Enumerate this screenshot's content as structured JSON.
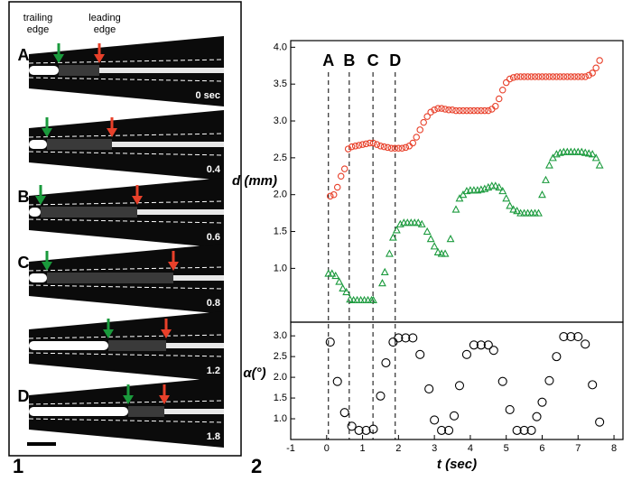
{
  "panel_1": {
    "header": [
      "trailing",
      "edge",
      "leading",
      "edge"
    ],
    "row_labels": [
      "A",
      "B",
      "C",
      "D"
    ],
    "times": [
      "0 sec",
      "0.4",
      "0.6",
      "0.8",
      "1.2",
      "1.8"
    ]
  },
  "panel_labels": [
    "1",
    "2"
  ],
  "chart_data": [
    {
      "type": "scatter",
      "ylabel": "d (mm)",
      "xlim": [
        -1,
        8.25
      ],
      "ylim": [
        0.27,
        4.09
      ],
      "yticks": [
        {
          "value": 1,
          "label": "1.0"
        },
        1.5,
        {
          "value": 2,
          "label": "2.0"
        },
        2.5,
        {
          "value": 3,
          "label": "3.0"
        },
        3.5,
        {
          "value": 4,
          "label": "4.0"
        }
      ],
      "annotations": [
        {
          "text": "A",
          "x": 0.05
        },
        {
          "text": "B",
          "x": 0.63
        },
        {
          "text": "C",
          "x": 1.29
        },
        {
          "text": "D",
          "x": 1.91
        }
      ],
      "series": [
        {
          "name": "leading edge",
          "color": "#e8402a",
          "marker": "circle",
          "x": [
            0.1,
            0.2,
            0.3,
            0.4,
            0.5,
            0.6,
            0.7,
            0.8,
            0.9,
            1.0,
            1.1,
            1.2,
            1.3,
            1.4,
            1.5,
            1.6,
            1.7,
            1.8,
            1.9,
            2.0,
            2.1,
            2.2,
            2.3,
            2.4,
            2.5,
            2.6,
            2.7,
            2.8,
            2.9,
            3.0,
            3.1,
            3.2,
            3.3,
            3.4,
            3.5,
            3.6,
            3.7,
            3.8,
            3.9,
            4.0,
            4.1,
            4.2,
            4.3,
            4.4,
            4.5,
            4.6,
            4.7,
            4.8,
            4.9,
            5.0,
            5.1,
            5.2,
            5.3,
            5.4,
            5.5,
            5.6,
            5.7,
            5.8,
            5.9,
            6.0,
            6.1,
            6.2,
            6.3,
            6.4,
            6.5,
            6.6,
            6.7,
            6.8,
            6.9,
            7.0,
            7.1,
            7.2,
            7.3,
            7.4,
            7.5,
            7.6
          ],
          "values": [
            1.98,
            2.0,
            2.1,
            2.25,
            2.35,
            2.62,
            2.65,
            2.66,
            2.67,
            2.68,
            2.69,
            2.7,
            2.7,
            2.68,
            2.66,
            2.65,
            2.64,
            2.63,
            2.63,
            2.63,
            2.63,
            2.64,
            2.66,
            2.7,
            2.78,
            2.88,
            2.98,
            3.06,
            3.12,
            3.15,
            3.17,
            3.17,
            3.16,
            3.15,
            3.15,
            3.14,
            3.14,
            3.14,
            3.14,
            3.14,
            3.14,
            3.14,
            3.14,
            3.14,
            3.14,
            3.16,
            3.2,
            3.3,
            3.42,
            3.52,
            3.57,
            3.59,
            3.6,
            3.6,
            3.6,
            3.6,
            3.6,
            3.6,
            3.6,
            3.6,
            3.6,
            3.6,
            3.6,
            3.6,
            3.6,
            3.6,
            3.6,
            3.6,
            3.6,
            3.6,
            3.6,
            3.6,
            3.62,
            3.65,
            3.72,
            3.82
          ]
        },
        {
          "name": "trailing edge",
          "color": "#1a9a3c",
          "marker": "triangle",
          "x": [
            0.05,
            0.15,
            0.25,
            0.35,
            0.45,
            0.55,
            0.65,
            0.75,
            0.85,
            0.95,
            1.05,
            1.15,
            1.25,
            1.3,
            1.55,
            1.62,
            1.75,
            1.85,
            1.95,
            2.05,
            2.15,
            2.25,
            2.35,
            2.45,
            2.55,
            2.65,
            2.8,
            2.9,
            3.0,
            3.1,
            3.2,
            3.3,
            3.45,
            3.6,
            3.7,
            3.8,
            3.9,
            4.0,
            4.1,
            4.2,
            4.3,
            4.4,
            4.5,
            4.6,
            4.7,
            4.8,
            4.9,
            5.0,
            5.1,
            5.2,
            5.3,
            5.4,
            5.5,
            5.6,
            5.7,
            5.8,
            5.9,
            6.0,
            6.1,
            6.2,
            6.3,
            6.4,
            6.5,
            6.6,
            6.7,
            6.8,
            6.9,
            7.0,
            7.1,
            7.2,
            7.3,
            7.4,
            7.5,
            7.6
          ],
          "values": [
            0.93,
            0.93,
            0.9,
            0.82,
            0.73,
            0.68,
            0.58,
            0.57,
            0.57,
            0.57,
            0.57,
            0.57,
            0.57,
            0.57,
            0.8,
            0.95,
            1.2,
            1.42,
            1.52,
            1.6,
            1.62,
            1.62,
            1.62,
            1.62,
            1.62,
            1.6,
            1.5,
            1.4,
            1.3,
            1.22,
            1.2,
            1.2,
            1.4,
            1.8,
            1.95,
            2.0,
            2.05,
            2.06,
            2.06,
            2.06,
            2.07,
            2.08,
            2.1,
            2.12,
            2.12,
            2.1,
            2.05,
            1.95,
            1.85,
            1.8,
            1.78,
            1.75,
            1.75,
            1.75,
            1.75,
            1.75,
            1.75,
            2.0,
            2.2,
            2.4,
            2.5,
            2.55,
            2.57,
            2.58,
            2.58,
            2.58,
            2.58,
            2.58,
            2.58,
            2.57,
            2.56,
            2.55,
            2.5,
            2.4
          ]
        }
      ]
    },
    {
      "type": "scatter",
      "ylabel": "α(°)",
      "xlabel": "t (sec)",
      "xlim": [
        -1,
        8.25
      ],
      "xticks": [
        -1,
        0,
        1,
        2,
        3,
        4,
        5,
        6,
        7,
        8
      ],
      "ylim": [
        0.5,
        3.33
      ],
      "yticks": [
        {
          "value": 1,
          "label": "1.0"
        },
        1.5,
        {
          "value": 2,
          "label": "2.0"
        },
        2.5,
        {
          "value": 3,
          "label": "3.0"
        }
      ],
      "series": [
        {
          "name": "angle",
          "color": "#000000",
          "marker": "circle",
          "x": [
            0.1,
            0.3,
            0.5,
            0.7,
            0.9,
            1.1,
            1.3,
            1.5,
            1.65,
            1.85,
            2.0,
            2.2,
            2.4,
            2.6,
            2.85,
            3.0,
            3.2,
            3.4,
            3.55,
            3.7,
            3.9,
            4.1,
            4.3,
            4.5,
            4.65,
            4.9,
            5.1,
            5.3,
            5.5,
            5.7,
            5.85,
            6.0,
            6.2,
            6.4,
            6.6,
            6.8,
            7.0,
            7.2,
            7.4,
            7.6
          ],
          "values": [
            2.85,
            1.9,
            1.15,
            0.82,
            0.72,
            0.72,
            0.75,
            1.55,
            2.35,
            2.85,
            2.95,
            2.95,
            2.95,
            2.55,
            1.72,
            0.97,
            0.72,
            0.72,
            1.07,
            1.8,
            2.55,
            2.78,
            2.78,
            2.78,
            2.65,
            1.9,
            1.22,
            0.72,
            0.72,
            0.72,
            1.05,
            1.4,
            1.92,
            2.5,
            2.98,
            2.98,
            2.98,
            2.8,
            1.82,
            0.92
          ]
        }
      ]
    }
  ]
}
